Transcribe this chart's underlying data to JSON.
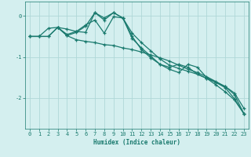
{
  "xlabel": "Humidex (Indice chaleur)",
  "background_color": "#d4efef",
  "grid_color": "#afd8d8",
  "line_color": "#1a7a6e",
  "xlim": [
    -0.5,
    23.5
  ],
  "ylim": [
    -2.75,
    0.35
  ],
  "yticks": [
    0,
    -1,
    -2
  ],
  "ytick_labels": [
    "0",
    "-1",
    "-2"
  ],
  "xticks": [
    0,
    1,
    2,
    3,
    4,
    5,
    6,
    7,
    8,
    9,
    10,
    11,
    12,
    13,
    14,
    15,
    16,
    17,
    18,
    19,
    20,
    21,
    22,
    23
  ],
  "series": [
    {
      "x": [
        0,
        1,
        2,
        3,
        4,
        5,
        6,
        7,
        8,
        9,
        10,
        11,
        12,
        13,
        14,
        15,
        16,
        17,
        18,
        19,
        20,
        21,
        22,
        23
      ],
      "y": [
        -0.5,
        -0.5,
        -0.3,
        -0.28,
        -0.45,
        -0.38,
        -0.4,
        0.08,
        -0.05,
        0.08,
        -0.05,
        -0.5,
        -0.82,
        -1.02,
        -1.18,
        -1.3,
        -1.38,
        -1.18,
        -1.25,
        -1.5,
        -1.62,
        -1.75,
        -2.02,
        -2.38
      ]
    },
    {
      "x": [
        0,
        1,
        2,
        3,
        4,
        5,
        6,
        7,
        8,
        9,
        10,
        11,
        12,
        13,
        14,
        15,
        16,
        17,
        18,
        19,
        20,
        21,
        22,
        23
      ],
      "y": [
        -0.5,
        -0.5,
        -0.5,
        -0.28,
        -0.32,
        -0.38,
        -0.22,
        -0.1,
        -0.42,
        -0.02,
        -0.05,
        -0.42,
        -0.65,
        -0.85,
        -1.05,
        -1.2,
        -1.28,
        -1.35,
        -1.42,
        -1.52,
        -1.62,
        -1.72,
        -1.88,
        -2.25
      ]
    },
    {
      "x": [
        0,
        1,
        2,
        3,
        4,
        5,
        6,
        7,
        8,
        9,
        10,
        11,
        12,
        13,
        14,
        15,
        16,
        17,
        18,
        19,
        20,
        21,
        22,
        23
      ],
      "y": [
        -0.5,
        -0.5,
        -0.5,
        -0.28,
        -0.48,
        -0.58,
        -0.62,
        -0.65,
        -0.7,
        -0.72,
        -0.78,
        -0.82,
        -0.88,
        -0.95,
        -1.02,
        -1.1,
        -1.2,
        -1.3,
        -1.38,
        -1.48,
        -1.6,
        -1.72,
        -1.92,
        -2.38
      ]
    },
    {
      "x": [
        3,
        4,
        5,
        6,
        7,
        8,
        9,
        10,
        11,
        12,
        13,
        14,
        15,
        16,
        17,
        18,
        19,
        20,
        21,
        22,
        23
      ],
      "y": [
        -0.28,
        -0.48,
        -0.4,
        -0.25,
        0.08,
        -0.1,
        0.08,
        -0.05,
        -0.55,
        -0.78,
        -0.98,
        -1.18,
        -1.25,
        -1.18,
        -1.25,
        -1.42,
        -1.52,
        -1.68,
        -1.85,
        -2.05,
        -2.38
      ]
    }
  ]
}
